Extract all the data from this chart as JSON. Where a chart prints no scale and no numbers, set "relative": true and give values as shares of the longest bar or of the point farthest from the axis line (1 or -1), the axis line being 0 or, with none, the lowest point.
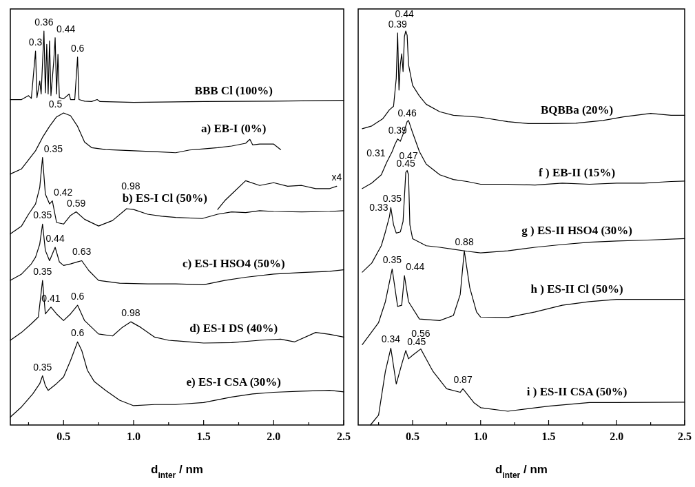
{
  "chart_data": [
    {
      "type": "line",
      "relative": true,
      "xlim": [
        0.12,
        2.5
      ],
      "xticks": [
        {
          "value": 0.25,
          "label": null
        },
        0.5,
        {
          "value": 0.75,
          "label": null
        },
        "1.0",
        {
          "value": 1.25,
          "label": null
        },
        1.5,
        {
          "value": 1.75,
          "label": null
        },
        "2.0",
        {
          "value": 2.25,
          "label": null
        },
        2.5
      ],
      "xlabel": "d$_{inter}$ / nm",
      "series": [
        {
          "name": "BBB Cl (100%)",
          "color": "#000000",
          "x": [
            0.12,
            0.2,
            0.25,
            0.27,
            0.3,
            0.31,
            0.33,
            0.34,
            0.36,
            0.37,
            0.38,
            0.39,
            0.4,
            0.41,
            0.43,
            0.44,
            0.45,
            0.46,
            0.47,
            0.5,
            0.54,
            0.55,
            0.58,
            0.6,
            0.61,
            0.65,
            0.7,
            0.74,
            0.76,
            1.0,
            1.5,
            2.0,
            2.5
          ],
          "values": [
            0.826,
            0.826,
            0.836,
            0.829,
            0.949,
            0.831,
            0.873,
            0.84,
            1.0,
            0.843,
            0.966,
            0.84,
            0.975,
            0.836,
            0.924,
            0.983,
            0.84,
            0.941,
            0.831,
            0.828,
            0.84,
            0.826,
            0.826,
            0.934,
            0.826,
            0.822,
            0.821,
            0.826,
            0.821,
            0.819,
            0.821,
            0.822,
            0.824
          ]
        },
        {
          "name": "a) EB-I (0%)",
          "color": "#000000",
          "x": [
            0.12,
            0.2,
            0.3,
            0.35,
            0.4,
            0.45,
            0.5,
            0.55,
            0.6,
            0.65,
            0.7,
            0.8,
            1.0,
            1.2,
            1.3,
            1.4,
            1.5,
            1.6,
            1.7,
            1.8,
            1.83,
            1.85,
            1.9,
            2.0,
            2.05
          ],
          "values": [
            0.637,
            0.65,
            0.696,
            0.73,
            0.758,
            0.782,
            0.792,
            0.785,
            0.758,
            0.718,
            0.704,
            0.699,
            0.696,
            0.693,
            0.691,
            0.698,
            0.701,
            0.704,
            0.708,
            0.715,
            0.725,
            0.711,
            0.713,
            0.713,
            0.699
          ]
        },
        {
          "name": "b) ES-I Cl (50%)",
          "color": "#000000",
          "x": [
            0.12,
            0.2,
            0.25,
            0.3,
            0.33,
            0.35,
            0.37,
            0.4,
            0.42,
            0.45,
            0.5,
            0.55,
            0.59,
            0.65,
            0.75,
            0.85,
            0.95,
            1.0,
            1.1,
            1.2,
            1.3,
            1.49,
            1.6,
            1.7,
            1.8,
            1.9,
            2.0,
            2.2,
            2.4,
            2.5
          ],
          "values": [
            0.485,
            0.505,
            0.535,
            0.561,
            0.603,
            0.679,
            0.586,
            0.561,
            0.569,
            0.514,
            0.51,
            0.532,
            0.541,
            0.522,
            0.505,
            0.519,
            0.549,
            0.547,
            0.535,
            0.53,
            0.527,
            0.524,
            0.535,
            0.541,
            0.539,
            0.544,
            0.542,
            0.541,
            0.542,
            0.544
          ]
        },
        {
          "color": "#000000",
          "x": [
            1.6,
            1.65,
            1.7,
            1.8,
            1.9,
            2.0,
            2.1,
            2.2,
            2.3,
            2.4,
            2.45
          ],
          "values": [
            0.547,
            0.569,
            0.586,
            0.62,
            0.608,
            0.615,
            0.606,
            0.608,
            0.6,
            0.6,
            0.606
          ]
        },
        {
          "name": "c) ES-I HSO4 (50%)",
          "color": "#000000",
          "x": [
            0.12,
            0.2,
            0.27,
            0.3,
            0.33,
            0.35,
            0.37,
            0.4,
            0.44,
            0.47,
            0.5,
            0.55,
            0.6,
            0.63,
            0.68,
            0.75,
            0.9,
            1.1,
            1.3,
            1.5,
            1.65,
            1.8,
            2.0,
            2.2,
            2.4,
            2.5
          ],
          "values": [
            0.367,
            0.383,
            0.409,
            0.426,
            0.459,
            0.51,
            0.443,
            0.417,
            0.451,
            0.414,
            0.405,
            0.409,
            0.414,
            0.417,
            0.392,
            0.367,
            0.36,
            0.358,
            0.358,
            0.356,
            0.367,
            0.375,
            0.383,
            0.387,
            0.39,
            0.394
          ]
        },
        {
          "name": "d) ES-I DS (40%)",
          "color": "#000000",
          "x": [
            0.12,
            0.2,
            0.27,
            0.32,
            0.35,
            0.37,
            0.41,
            0.45,
            0.5,
            0.55,
            0.6,
            0.65,
            0.75,
            0.85,
            0.92,
            0.98,
            1.05,
            1.15,
            1.25,
            1.4,
            1.5,
            1.7,
            1.9,
            2.05,
            2.15,
            2.3,
            2.4,
            2.5
          ],
          "values": [
            0.215,
            0.235,
            0.257,
            0.274,
            0.367,
            0.282,
            0.299,
            0.282,
            0.265,
            0.282,
            0.304,
            0.265,
            0.231,
            0.226,
            0.248,
            0.262,
            0.248,
            0.223,
            0.215,
            0.211,
            0.208,
            0.209,
            0.215,
            0.218,
            0.211,
            0.235,
            0.23,
            0.223
          ]
        },
        {
          "name": "e) ES-I CSA (30%)",
          "color": "#000000",
          "x": [
            0.12,
            0.2,
            0.28,
            0.33,
            0.35,
            0.37,
            0.39,
            0.45,
            0.5,
            0.55,
            0.6,
            0.63,
            0.67,
            0.72,
            0.8,
            0.9,
            1.0,
            1.15,
            1.3,
            1.5,
            1.7,
            1.85,
            2.0,
            2.2,
            2.4,
            2.5
          ],
          "values": [
            0.02,
            0.046,
            0.079,
            0.105,
            0.125,
            0.1,
            0.088,
            0.105,
            0.122,
            0.164,
            0.211,
            0.189,
            0.139,
            0.11,
            0.088,
            0.063,
            0.049,
            0.052,
            0.052,
            0.057,
            0.071,
            0.079,
            0.083,
            0.086,
            0.088,
            0.084
          ]
        }
      ],
      "annotations": [
        {
          "text": "0.3",
          "x": 0.3,
          "y": 0.949
        },
        {
          "text": "0.36",
          "x": 0.36,
          "y": 1.0
        },
        {
          "text": "0.44",
          "x": 0.44,
          "y": 0.983
        },
        {
          "text": "0.6",
          "x": 0.6,
          "y": 0.934
        },
        {
          "text": "0.5",
          "x": 0.5,
          "y": 0.792
        },
        {
          "text": "0.35",
          "x": 0.35,
          "y": 0.679
        },
        {
          "text": "0.42",
          "x": 0.42,
          "y": 0.569
        },
        {
          "text": "0.59",
          "x": 0.59,
          "y": 0.541
        },
        {
          "text": "0.98",
          "x": 0.98,
          "y": 0.549
        },
        {
          "text": "x4",
          "x": 2.45,
          "y": 0.606
        },
        {
          "text": "0.35",
          "x": 0.35,
          "y": 0.51
        },
        {
          "text": "0.44",
          "x": 0.44,
          "y": 0.451
        },
        {
          "text": "0.63",
          "x": 0.63,
          "y": 0.417
        },
        {
          "text": "0.35",
          "x": 0.35,
          "y": 0.367
        },
        {
          "text": "0.41",
          "x": 0.41,
          "y": 0.299
        },
        {
          "text": "0.6",
          "x": 0.6,
          "y": 0.304
        },
        {
          "text": "0.98",
          "x": 0.98,
          "y": 0.262
        },
        {
          "text": "0.35",
          "x": 0.35,
          "y": 0.125
        },
        {
          "text": "0.6",
          "x": 0.6,
          "y": 0.211
        }
      ]
    },
    {
      "type": "line",
      "relative": true,
      "xlim": [
        0.1,
        2.5
      ],
      "xticks": [
        {
          "value": 0.25,
          "label": null
        },
        0.5,
        {
          "value": 0.75,
          "label": null
        },
        "1.0",
        {
          "value": 1.25,
          "label": null
        },
        1.5,
        {
          "value": 1.75,
          "label": null
        },
        "2.0",
        {
          "value": 2.25,
          "label": null
        },
        2.5
      ],
      "xlabel": "d$_{inter}$ / nm",
      "series": [
        {
          "name": "BQBBa (20%)",
          "color": "#000000",
          "x": [
            0.13,
            0.2,
            0.28,
            0.33,
            0.36,
            0.38,
            0.39,
            0.4,
            0.41,
            0.42,
            0.43,
            0.44,
            0.45,
            0.46,
            0.47,
            0.48,
            0.5,
            0.55,
            0.6,
            0.7,
            0.8,
            1.0,
            1.2,
            1.35,
            1.5,
            1.7,
            1.9,
            2.05,
            2.25,
            2.4,
            2.5
          ],
          "values": [
            0.752,
            0.759,
            0.777,
            0.8,
            0.809,
            0.88,
            0.995,
            0.85,
            0.915,
            0.942,
            0.897,
            0.986,
            1.0,
            0.989,
            0.915,
            0.897,
            0.862,
            0.835,
            0.814,
            0.795,
            0.786,
            0.781,
            0.77,
            0.765,
            0.765,
            0.766,
            0.773,
            0.782,
            0.791,
            0.786,
            0.786
          ]
        },
        {
          "name": "f ) EB-II (15%)",
          "color": "#000000",
          "x": [
            0.13,
            0.2,
            0.27,
            0.31,
            0.35,
            0.37,
            0.39,
            0.41,
            0.43,
            0.46,
            0.47,
            0.5,
            0.55,
            0.6,
            0.7,
            0.8,
            0.9,
            1.0,
            1.2,
            1.4,
            1.6,
            1.8,
            2.0,
            2.2,
            2.4,
            2.5
          ],
          "values": [
            0.6,
            0.614,
            0.635,
            0.667,
            0.694,
            0.712,
            0.726,
            0.72,
            0.738,
            0.77,
            0.773,
            0.742,
            0.694,
            0.662,
            0.635,
            0.623,
            0.618,
            0.611,
            0.611,
            0.609,
            0.614,
            0.611,
            0.614,
            0.614,
            0.618,
            0.619
          ]
        },
        {
          "name": "g ) ES-II HSO4 (30%)",
          "color": "#000000",
          "x": [
            0.13,
            0.2,
            0.27,
            0.3,
            0.33,
            0.34,
            0.36,
            0.38,
            0.41,
            0.43,
            0.45,
            0.46,
            0.47,
            0.48,
            0.5,
            0.6,
            0.7,
            0.8,
            0.9,
            1.0,
            1.2,
            1.4,
            1.6,
            1.8,
            2.0,
            2.2,
            2.5
          ],
          "values": [
            0.388,
            0.411,
            0.455,
            0.49,
            0.529,
            0.552,
            0.508,
            0.487,
            0.49,
            0.517,
            0.641,
            0.646,
            0.635,
            0.508,
            0.473,
            0.455,
            0.451,
            0.446,
            0.441,
            0.437,
            0.442,
            0.451,
            0.458,
            0.464,
            0.467,
            0.469,
            0.473
          ]
        },
        {
          "name": "h ) ES-II Cl (50%)",
          "color": "#000000",
          "x": [
            0.13,
            0.25,
            0.3,
            0.35,
            0.39,
            0.42,
            0.44,
            0.47,
            0.55,
            0.7,
            0.8,
            0.85,
            0.88,
            0.92,
            0.97,
            1.0,
            1.2,
            1.4,
            1.6,
            1.8,
            2.0,
            2.5
          ],
          "values": [
            0.204,
            0.26,
            0.313,
            0.396,
            0.301,
            0.304,
            0.379,
            0.313,
            0.269,
            0.265,
            0.278,
            0.331,
            0.442,
            0.349,
            0.287,
            0.274,
            0.273,
            0.287,
            0.304,
            0.313,
            0.319,
            0.319
          ]
        },
        {
          "name": "i ) ES-II CSA (50%)",
          "color": "#000000",
          "x": [
            0.19,
            0.25,
            0.3,
            0.34,
            0.38,
            0.42,
            0.45,
            0.47,
            0.5,
            0.56,
            0.65,
            0.75,
            0.85,
            0.87,
            0.95,
            1.0,
            1.2,
            1.5,
            1.8,
            2.0,
            2.5
          ],
          "values": [
            0.0,
            0.025,
            0.136,
            0.195,
            0.104,
            0.154,
            0.189,
            0.168,
            0.177,
            0.193,
            0.136,
            0.092,
            0.083,
            0.092,
            0.057,
            0.044,
            0.035,
            0.048,
            0.057,
            0.057,
            0.058
          ]
        }
      ],
      "annotations": [
        {
          "text": "0.39",
          "x": 0.39,
          "y": 0.995
        },
        {
          "text": "0.44",
          "x": 0.44,
          "y": 0.986
        },
        {
          "text": "0.46",
          "x": 0.46,
          "y": 0.77
        },
        {
          "text": "0.39",
          "x": 0.39,
          "y": 0.726
        },
        {
          "text": "0.31",
          "x": 0.31,
          "y": 0.667
        },
        {
          "text": "0.45",
          "x": 0.45,
          "y": 0.641
        },
        {
          "text": "0.47",
          "x": 0.47,
          "y": 0.635
        },
        {
          "text": "0.33",
          "x": 0.33,
          "y": 0.529
        },
        {
          "text": "0.35",
          "x": 0.35,
          "y": 0.552
        },
        {
          "text": "0.35",
          "x": 0.35,
          "y": 0.396
        },
        {
          "text": "0.44",
          "x": 0.44,
          "y": 0.379
        },
        {
          "text": "0.88",
          "x": 0.88,
          "y": 0.442
        },
        {
          "text": "0.34",
          "x": 0.34,
          "y": 0.195
        },
        {
          "text": "0.45",
          "x": 0.45,
          "y": 0.189
        },
        {
          "text": "0.56",
          "x": 0.56,
          "y": 0.193
        },
        {
          "text": "0.87",
          "x": 0.87,
          "y": 0.092
        }
      ]
    }
  ]
}
